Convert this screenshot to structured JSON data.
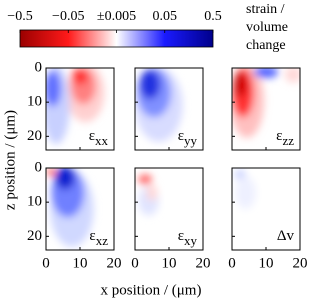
{
  "chart_data": {
    "type": "heatmap-grid",
    "colorbar": {
      "scale": "symlog",
      "linthresh": 0.005,
      "clim": [
        -0.5,
        0.5
      ],
      "colors": [
        "#9b0000",
        "#ff1a1a",
        "#ffffff",
        "#1a1aff",
        "#00008b"
      ],
      "ticks": [
        {
          "value": -0.5,
          "label": "−0.5"
        },
        {
          "value": -0.05,
          "label": "−0.05"
        },
        {
          "value": 0.005,
          "label": "±0.005"
        },
        0.05,
        0.5
      ],
      "label": [
        "strain /",
        "volume",
        "change"
      ]
    },
    "xlabel": "x position / (μm)",
    "ylabel": "z position / (μm)",
    "xlim": [
      0,
      20
    ],
    "xticks": [
      0,
      10,
      20
    ],
    "ylim": [
      0,
      24
    ],
    "yticks": [
      0,
      10,
      20
    ],
    "y_inverted": true,
    "panels": [
      {
        "symbol": "ε",
        "sub": "xx"
      },
      {
        "symbol": "ε",
        "sub": "yy"
      },
      {
        "symbol": "ε",
        "sub": "zz"
      },
      {
        "symbol": "ε",
        "sub": "xz"
      },
      {
        "symbol": "ε",
        "sub": "xy"
      },
      {
        "symbol": "Δv"
      }
    ]
  }
}
